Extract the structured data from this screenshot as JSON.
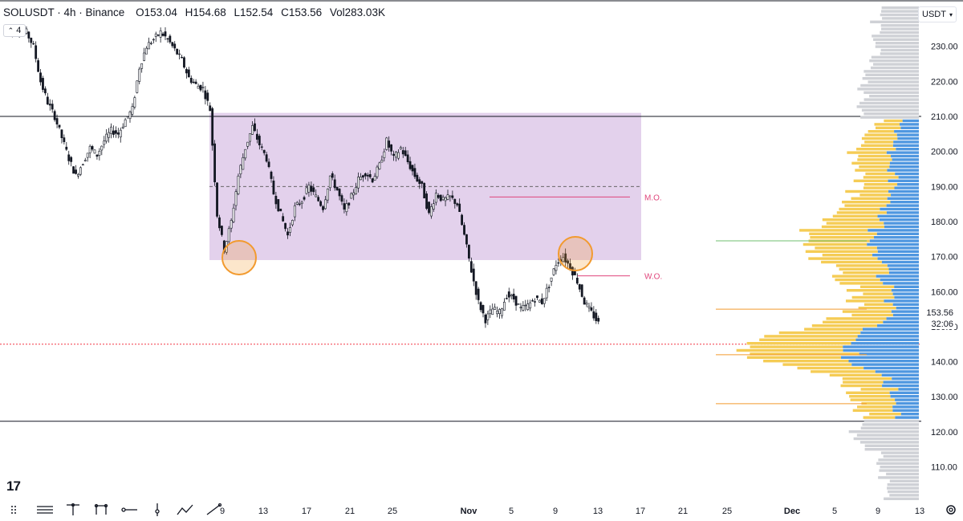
{
  "header": {
    "symbol_line": "SOLUSDT · 4h · Binance",
    "open_label": "O",
    "open": "153.04",
    "high_label": "H",
    "high": "154.68",
    "low_label": "L",
    "low": "152.54",
    "close_label": "C",
    "close": "153.56",
    "vol_label": "Vol",
    "vol": "283.03K",
    "collapse_count": "4"
  },
  "currency": "USDT",
  "last_price": "153.56",
  "countdown": "32:06",
  "annotations": {
    "mo": "M.O.",
    "wo": "W.O."
  },
  "colors": {
    "range_box": "#d9c2e6",
    "mid_open": "#e0457b",
    "profile_yellow": "#f5cc55",
    "profile_blue": "#4f97e0",
    "profile_gray": "#cfd1d6",
    "circle": "#f29a2e",
    "support_line": "#f23645"
  },
  "chart_data": {
    "type": "candlestick",
    "symbol": "SOLUSDT",
    "interval": "4h",
    "y_ticks": [
      110,
      120,
      130,
      140,
      150,
      160,
      170,
      180,
      190,
      200,
      210,
      220,
      230
    ],
    "x_ticks": [
      "9",
      "13",
      "17",
      "21",
      "25",
      "Nov",
      "5",
      "9",
      "13",
      "17",
      "21",
      "25",
      "Dec",
      "5",
      "9",
      "13"
    ],
    "horizontal_levels": [
      210,
      123
    ],
    "dashed_support": 145,
    "range_box": {
      "top": 211,
      "bottom": 169,
      "midline": 190
    },
    "monthly_open": 187,
    "weekly_open": 164.5,
    "price_path": [
      [
        0,
        236
      ],
      [
        1,
        234
      ],
      [
        2,
        235
      ],
      [
        3,
        234
      ],
      [
        4,
        230
      ],
      [
        5,
        220
      ],
      [
        6,
        214
      ],
      [
        7,
        210
      ],
      [
        8,
        204
      ],
      [
        9,
        198
      ],
      [
        10,
        193
      ],
      [
        11,
        197
      ],
      [
        12,
        201
      ],
      [
        13,
        199
      ],
      [
        14,
        203
      ],
      [
        15,
        206
      ],
      [
        16,
        205
      ],
      [
        17,
        209
      ],
      [
        18,
        212
      ],
      [
        19,
        224
      ],
      [
        20,
        230
      ],
      [
        21,
        232
      ],
      [
        22,
        234
      ],
      [
        23,
        232
      ],
      [
        24,
        229
      ],
      [
        25,
        226
      ],
      [
        26,
        221
      ],
      [
        27,
        219
      ],
      [
        28,
        218
      ],
      [
        29,
        212
      ],
      [
        30,
        182
      ],
      [
        31,
        172
      ],
      [
        32,
        180
      ],
      [
        33,
        193
      ],
      [
        34,
        201
      ],
      [
        35,
        207
      ],
      [
        36,
        202
      ],
      [
        37,
        198
      ],
      [
        38,
        188
      ],
      [
        39,
        182
      ],
      [
        40,
        176
      ],
      [
        41,
        184
      ],
      [
        42,
        186
      ],
      [
        43,
        190
      ],
      [
        44,
        187
      ],
      [
        45,
        184
      ],
      [
        46,
        193
      ],
      [
        47,
        189
      ],
      [
        48,
        183
      ],
      [
        49,
        187
      ],
      [
        50,
        192
      ],
      [
        51,
        194
      ],
      [
        52,
        192
      ],
      [
        53,
        196
      ],
      [
        54,
        203
      ],
      [
        55,
        198
      ],
      [
        56,
        201
      ],
      [
        57,
        197
      ],
      [
        58,
        193
      ],
      [
        59,
        190
      ],
      [
        60,
        182
      ],
      [
        61,
        188
      ],
      [
        62,
        186
      ],
      [
        63,
        187
      ],
      [
        64,
        185
      ],
      [
        65,
        176
      ],
      [
        66,
        166
      ],
      [
        67,
        157
      ],
      [
        68,
        152
      ],
      [
        69,
        155
      ],
      [
        70,
        154
      ],
      [
        71,
        159
      ],
      [
        72,
        158
      ],
      [
        73,
        155
      ],
      [
        74,
        156
      ],
      [
        75,
        158
      ],
      [
        76,
        157
      ],
      [
        77,
        162
      ],
      [
        78,
        168
      ],
      [
        79,
        170
      ],
      [
        80,
        167
      ],
      [
        81,
        163
      ],
      [
        82,
        157
      ],
      [
        83,
        154
      ],
      [
        84,
        151
      ]
    ],
    "volume_profile": "upper gray, middle yellow/blue (value area 125-210), lower gray"
  }
}
